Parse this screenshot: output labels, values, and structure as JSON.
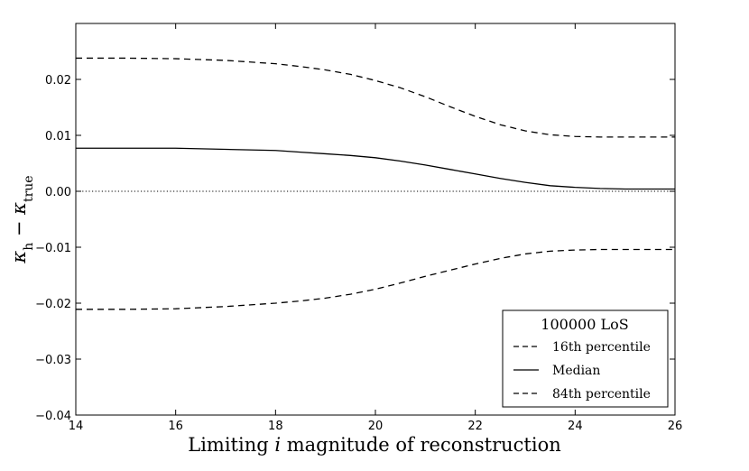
{
  "chart_data": {
    "type": "line",
    "xlabel": "Limiting i magnitude of reconstruction",
    "xlabel_prefix": "Limiting ",
    "xlabel_var": "i",
    "xlabel_suffix": " magnitude of reconstruction",
    "ylabel": "κ_h − κ_true",
    "ylabel_main": "κ",
    "ylabel_sub1": "h",
    "ylabel_minus": " − ",
    "ylabel_sub2": "true",
    "xlim": [
      14,
      26
    ],
    "ylim": [
      -0.04,
      0.03
    ],
    "xticks": [
      14,
      16,
      18,
      20,
      22,
      24,
      26
    ],
    "xtick_labels": [
      "14",
      "16",
      "18",
      "20",
      "22",
      "24",
      "26"
    ],
    "yticks": [
      -0.04,
      -0.03,
      -0.02,
      -0.01,
      0.0,
      0.01,
      0.02
    ],
    "ytick_labels": [
      "−0.04",
      "−0.03",
      "−0.02",
      "−0.01",
      "0.00",
      "0.01",
      "0.02"
    ],
    "reference_line_y": 0.0,
    "legend_title": "100000 LoS",
    "legend_position": "lower-right",
    "series": [
      {
        "name": "16th percentile",
        "style": "dashed",
        "x": [
          14,
          15,
          16,
          17,
          18,
          18.5,
          19,
          19.5,
          20,
          20.5,
          21,
          21.5,
          22,
          22.5,
          23,
          23.5,
          24,
          24.5,
          25,
          25.5,
          26
        ],
        "y": [
          -0.0211,
          -0.0211,
          -0.021,
          -0.0206,
          -0.02,
          -0.0196,
          -0.0191,
          -0.0184,
          -0.0175,
          -0.0164,
          -0.0152,
          -0.0141,
          -0.013,
          -0.012,
          -0.0112,
          -0.0107,
          -0.0105,
          -0.0104,
          -0.0104,
          -0.0104,
          -0.0104
        ]
      },
      {
        "name": "Median",
        "style": "solid",
        "x": [
          14,
          15,
          16,
          17,
          18,
          18.5,
          19,
          19.5,
          20,
          20.5,
          21,
          21.5,
          22,
          22.5,
          23,
          23.5,
          24,
          24.5,
          25,
          25.5,
          26
        ],
        "y": [
          0.0077,
          0.0077,
          0.0077,
          0.0075,
          0.0073,
          0.007,
          0.0067,
          0.0064,
          0.006,
          0.0054,
          0.0047,
          0.0039,
          0.0031,
          0.0023,
          0.0016,
          0.001,
          0.0007,
          0.0005,
          0.0004,
          0.0004,
          0.0004
        ]
      },
      {
        "name": "84th percentile",
        "style": "dashed",
        "x": [
          14,
          15,
          16,
          17,
          18,
          18.5,
          19,
          19.5,
          20,
          20.5,
          21,
          21.5,
          22,
          22.5,
          23,
          23.5,
          24,
          24.5,
          25,
          25.5,
          26
        ],
        "y": [
          0.0238,
          0.0238,
          0.0237,
          0.0234,
          0.0228,
          0.0223,
          0.0217,
          0.0209,
          0.0198,
          0.0185,
          0.0169,
          0.0151,
          0.0134,
          0.0119,
          0.0108,
          0.0101,
          0.0098,
          0.0097,
          0.0097,
          0.0097,
          0.0097
        ]
      }
    ]
  }
}
